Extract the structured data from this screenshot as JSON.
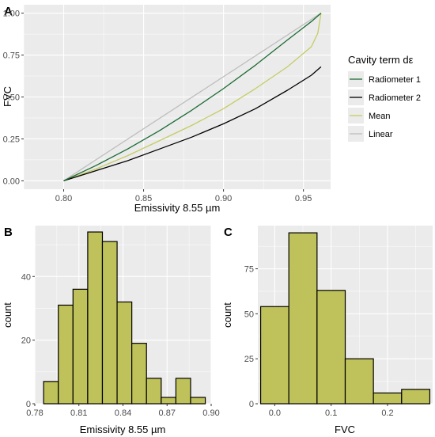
{
  "chart_data": [
    {
      "panel": "A",
      "type": "line",
      "xlabel": "Emissivity 8.55 µm",
      "ylabel": "FVC",
      "xlim": [
        0.775,
        0.967
      ],
      "ylim": [
        -0.05,
        1.05
      ],
      "x_ticks": [
        "0.80",
        "0.85",
        "0.90",
        "0.95"
      ],
      "x_tick_values": [
        0.8,
        0.85,
        0.9,
        0.95
      ],
      "y_ticks": [
        "0.00",
        "0.25",
        "0.50",
        "0.75",
        "1.00"
      ],
      "y_tick_values": [
        0.0,
        0.25,
        0.5,
        0.75,
        1.0
      ],
      "grid": true,
      "legend_title": "Cavity term dε",
      "legend_position": "right",
      "series": [
        {
          "name": "Radiometer 1",
          "color": "#1b6b33",
          "x": [
            0.8,
            0.82,
            0.84,
            0.86,
            0.88,
            0.9,
            0.92,
            0.94,
            0.955,
            0.961
          ],
          "y": [
            0.0,
            0.09,
            0.19,
            0.3,
            0.42,
            0.55,
            0.69,
            0.84,
            0.95,
            1.0
          ]
        },
        {
          "name": "Radiometer 2",
          "color": "#000000",
          "x": [
            0.8,
            0.82,
            0.84,
            0.86,
            0.88,
            0.9,
            0.92,
            0.94,
            0.955,
            0.961
          ],
          "y": [
            0.0,
            0.06,
            0.12,
            0.19,
            0.26,
            0.34,
            0.43,
            0.54,
            0.63,
            0.68
          ]
        },
        {
          "name": "Mean",
          "color": "#c5cc63",
          "x": [
            0.8,
            0.82,
            0.84,
            0.86,
            0.88,
            0.9,
            0.92,
            0.94,
            0.955,
            0.959,
            0.961
          ],
          "y": [
            0.0,
            0.07,
            0.15,
            0.24,
            0.33,
            0.43,
            0.55,
            0.68,
            0.8,
            0.88,
            1.0
          ]
        },
        {
          "name": "Linear",
          "color": "#bdbdbd",
          "x": [
            0.8,
            0.961
          ],
          "y": [
            0.0,
            1.0
          ]
        }
      ]
    },
    {
      "panel": "B",
      "type": "bar",
      "subtype": "histogram",
      "xlabel": "Emissivity 8.55 µm",
      "ylabel": "count",
      "xlim": [
        0.78,
        0.9
      ],
      "ylim": [
        0,
        56
      ],
      "x_ticks": [
        "0.78",
        "0.81",
        "0.84",
        "0.87",
        "0.90"
      ],
      "x_tick_values": [
        0.78,
        0.81,
        0.84,
        0.87,
        0.9
      ],
      "y_ticks": [
        "0",
        "20",
        "40"
      ],
      "y_tick_values": [
        0,
        20,
        40
      ],
      "grid": true,
      "bin_edges": [
        0.786,
        0.796,
        0.806,
        0.816,
        0.826,
        0.836,
        0.846,
        0.856,
        0.866,
        0.876,
        0.886,
        0.896
      ],
      "values": [
        7,
        31,
        36,
        54,
        51,
        32,
        19,
        8,
        2,
        8,
        2
      ]
    },
    {
      "panel": "C",
      "type": "bar",
      "subtype": "histogram",
      "xlabel": "FVC",
      "ylabel": "count",
      "xlim": [
        -0.03,
        0.28
      ],
      "ylim": [
        0,
        99
      ],
      "x_ticks": [
        "0.0",
        "0.1",
        "0.2"
      ],
      "x_tick_values": [
        0.0,
        0.1,
        0.2
      ],
      "y_ticks": [
        "0",
        "25",
        "50",
        "75"
      ],
      "y_tick_values": [
        0,
        25,
        50,
        75
      ],
      "grid": true,
      "bin_edges": [
        -0.025,
        0.025,
        0.075,
        0.125,
        0.175,
        0.225,
        0.275
      ],
      "values": [
        54,
        95,
        63,
        25,
        6,
        8
      ]
    }
  ]
}
